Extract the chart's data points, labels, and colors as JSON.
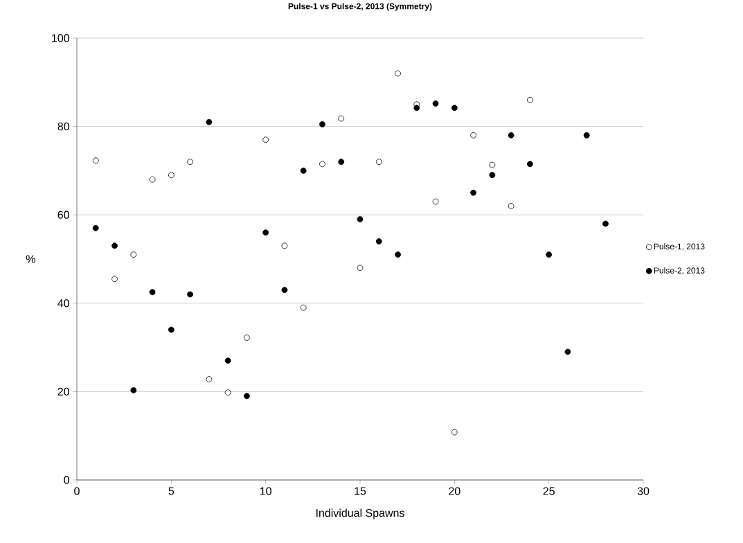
{
  "chart_data": {
    "type": "scatter",
    "title": "Pulse-1 vs Pulse-2, 2013 (Symmetry)",
    "xlabel": "Individual Spawns",
    "ylabel": "%",
    "xlim": [
      0,
      30
    ],
    "xticks": [
      0,
      5,
      10,
      15,
      20,
      25,
      30
    ],
    "ylim": [
      0,
      100
    ],
    "yticks": [
      0,
      20,
      40,
      60,
      80,
      100
    ],
    "grid": "y",
    "legend": "right",
    "series": [
      {
        "name": "Pulse-1, 2013",
        "color": "#ffffff",
        "x": [
          1,
          2,
          3,
          4,
          5,
          6,
          7,
          8,
          9,
          10,
          11,
          12,
          13,
          14,
          15,
          16,
          17,
          18,
          19,
          20,
          21,
          22,
          23,
          24
        ],
        "values": [
          72.3,
          45.5,
          51,
          68,
          69,
          72,
          22.8,
          19.8,
          32.2,
          77,
          53,
          39,
          71.5,
          81.8,
          48,
          72,
          92,
          85,
          63,
          10.8,
          78,
          71.3,
          62,
          86
        ]
      },
      {
        "name": "Pulse-2, 2013",
        "color": "#000000",
        "x": [
          1,
          2,
          3,
          4,
          5,
          6,
          7,
          8,
          9,
          10,
          11,
          12,
          13,
          14,
          15,
          16,
          17,
          18,
          19,
          20,
          21,
          22,
          23,
          24,
          25,
          26,
          27,
          28
        ],
        "values": [
          57,
          53,
          20.3,
          42.5,
          34,
          42,
          81,
          27,
          19,
          56,
          43,
          70,
          80.5,
          72,
          59,
          54,
          51,
          84.2,
          85.2,
          84.2,
          65,
          69,
          78,
          71.5,
          51,
          29,
          78,
          58
        ]
      }
    ]
  }
}
